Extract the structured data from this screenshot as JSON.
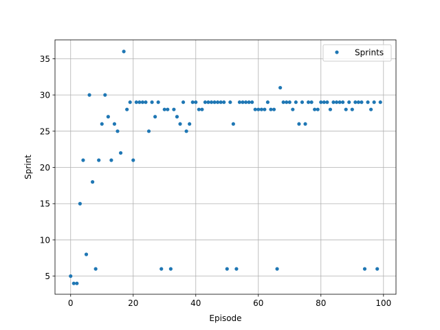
{
  "chart_data": {
    "type": "scatter",
    "xlabel": "Episode",
    "ylabel": "Sprint",
    "xlim": [
      -5,
      104
    ],
    "ylim": [
      2.5,
      37.6
    ],
    "xticks": [
      0,
      20,
      40,
      60,
      80,
      100
    ],
    "yticks": [
      5,
      10,
      15,
      20,
      25,
      30,
      35
    ],
    "grid": true,
    "legend_position": "top-right",
    "series": [
      {
        "name": "Sprints",
        "color": "#1f77b4",
        "x": [
          0,
          1,
          2,
          3,
          4,
          5,
          6,
          7,
          8,
          9,
          10,
          11,
          12,
          13,
          14,
          15,
          16,
          17,
          18,
          19,
          20,
          21,
          22,
          23,
          24,
          25,
          26,
          27,
          28,
          29,
          30,
          31,
          32,
          33,
          34,
          35,
          36,
          37,
          38,
          39,
          40,
          41,
          42,
          43,
          44,
          45,
          46,
          47,
          48,
          49,
          50,
          51,
          52,
          53,
          54,
          55,
          56,
          57,
          58,
          59,
          60,
          61,
          62,
          63,
          64,
          65,
          66,
          67,
          68,
          69,
          70,
          71,
          72,
          73,
          74,
          75,
          76,
          77,
          78,
          79,
          80,
          81,
          82,
          83,
          84,
          85,
          86,
          87,
          88,
          89,
          90,
          91,
          92,
          93,
          94,
          95,
          96,
          97,
          98,
          99
        ],
        "y": [
          5,
          4,
          4,
          15,
          21,
          8,
          30,
          18,
          6,
          21,
          26,
          30,
          27,
          21,
          26,
          25,
          22,
          36,
          28,
          29,
          21,
          29,
          29,
          29,
          29,
          25,
          29,
          27,
          29,
          6,
          28,
          28,
          6,
          28,
          27,
          26,
          29,
          25,
          26,
          29,
          29,
          28,
          28,
          29,
          29,
          29,
          29,
          29,
          29,
          29,
          6,
          29,
          26,
          6,
          29,
          29,
          29,
          29,
          29,
          28,
          28,
          28,
          28,
          29,
          28,
          28,
          6,
          31,
          29,
          29,
          29,
          28,
          29,
          26,
          29,
          26,
          29,
          29,
          28,
          28,
          29,
          29,
          29,
          28,
          29,
          29,
          29,
          29,
          28,
          29,
          28,
          29,
          29,
          29,
          6,
          29,
          28,
          29,
          6,
          29
        ]
      }
    ]
  }
}
